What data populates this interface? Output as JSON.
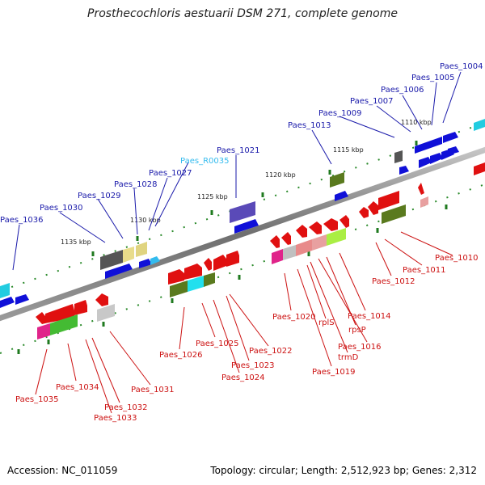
{
  "title": "Prosthecochloris aestuarii DSM 271, complete genome",
  "footer": {
    "accession": "Accession: NC_011059",
    "summary": "Topology: circular; Length: 2,512,923 bp; Genes: 2,312"
  },
  "colors": {
    "forward_label": "#1a1aaa",
    "reverse_label": "#cc1111",
    "rna_label": "#33bbee",
    "axis": "#777777",
    "tick": "#228822"
  },
  "ruler_labels": [
    "1110 kbp",
    "1115 kbp",
    "1120 kbp",
    "1125 kbp",
    "1130 kbp",
    "1135 kbp"
  ],
  "forward_genes": [
    "Paes_1004",
    "Paes_1005",
    "Paes_1006",
    "Paes_1007",
    "Paes_1009",
    "Paes_1013",
    "Paes_1021",
    "Paes_R0035",
    "Paes_1027",
    "Paes_1028",
    "Paes_1029",
    "Paes_1030",
    "Paes_1036"
  ],
  "reverse_genes": [
    "Paes_1010",
    "Paes_1011",
    "Paes_1012",
    "Paes_1014",
    "rpsP",
    "Paes_1016",
    "trmD",
    "rplS",
    "Paes_1019",
    "Paes_1020",
    "Paes_1022",
    "Paes_1023",
    "Paes_1024",
    "Paes_1025",
    "Paes_1026",
    "Paes_1031",
    "Paes_1032",
    "Paes_1033",
    "Paes_1034",
    "Paes_1035"
  ]
}
